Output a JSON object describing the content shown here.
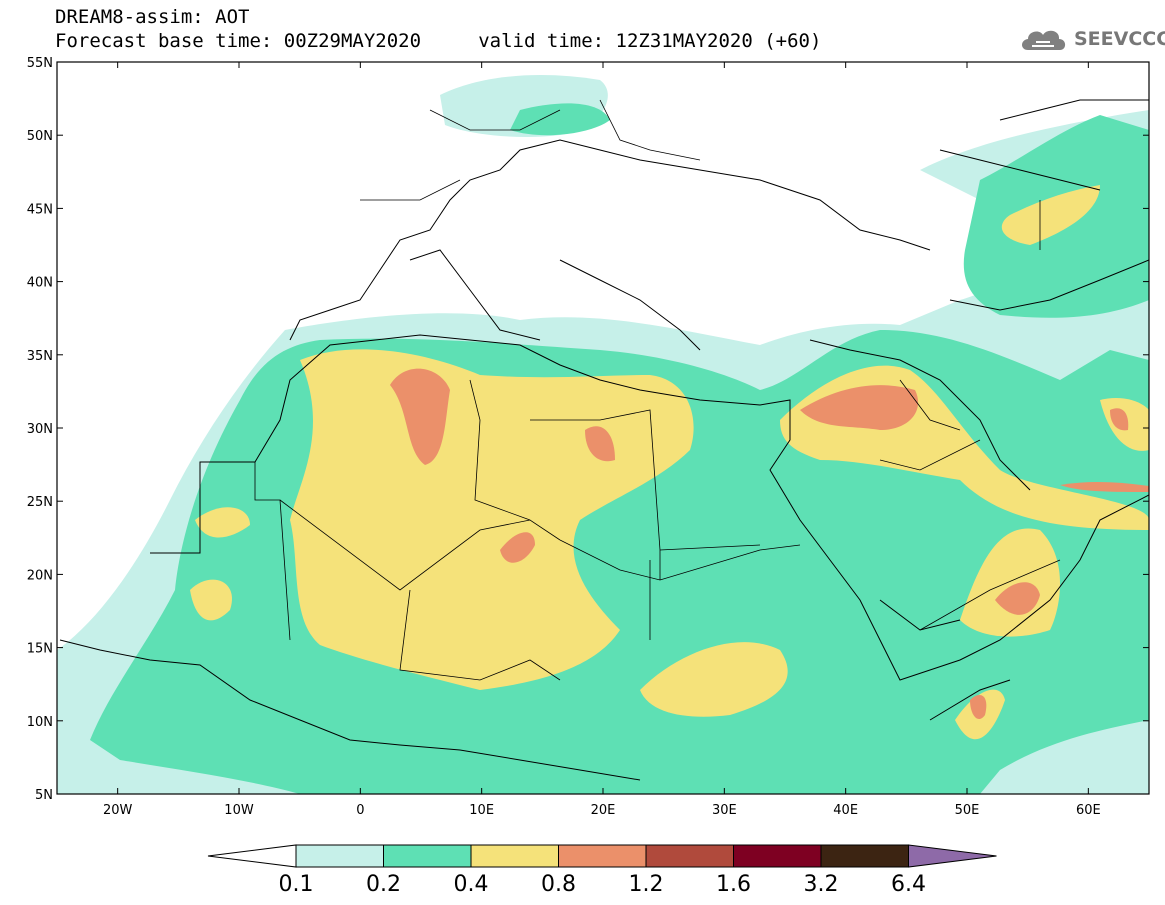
{
  "header": {
    "line1": "DREAM8-assim: AOT",
    "line2": "Forecast base time: 00Z29MAY2020     valid time: 12Z31MAY2020 (+60)",
    "logo_text": "SEEVCCC"
  },
  "map": {
    "lon_range": [
      -25,
      65
    ],
    "lat_range": [
      5,
      55
    ],
    "lat_ticks": [
      "55N",
      "50N",
      "45N",
      "40N",
      "35N",
      "30N",
      "25N",
      "20N",
      "15N",
      "10N",
      "5N"
    ],
    "lon_ticks": [
      "20W",
      "10W",
      "0",
      "10E",
      "20E",
      "30E",
      "40E",
      "50E",
      "60E"
    ],
    "colors": {
      "c01": "#c6f0e9",
      "c02": "#5ee0b4",
      "c04": "#f5e27a",
      "c08": "#eb906a",
      "c12": "#b04a3c",
      "c16": "#7e0022",
      "c32": "#3c2412",
      "c64": "#8e6aa8"
    }
  },
  "colorbar": {
    "labels": [
      "0.1",
      "0.2",
      "0.4",
      "0.8",
      "1.2",
      "1.6",
      "3.2",
      "6.4"
    ],
    "colors": [
      "#c6f0e9",
      "#5ee0b4",
      "#f5e27a",
      "#eb906a",
      "#b04a3c",
      "#7e0022",
      "#3c2412"
    ],
    "under_color": "#ffffff",
    "over_color": "#8e6aa8"
  }
}
